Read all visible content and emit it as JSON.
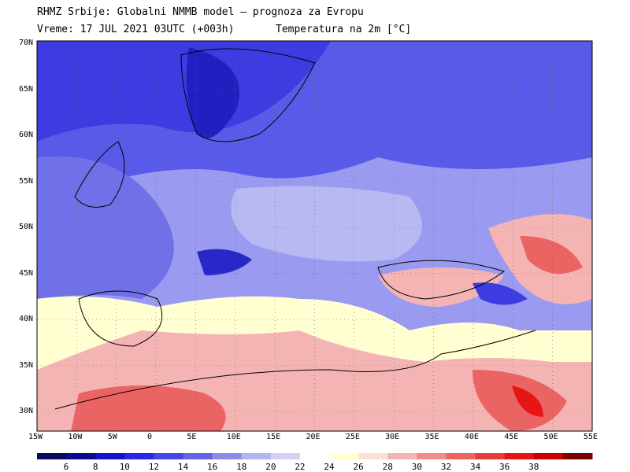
{
  "header": {
    "line1": "RHMZ Srbije: Globalni NMMB model — prognoza za Evropu",
    "line2": "Vreme: 17 JUL 2021 03UTC (+003h)",
    "line2_right": "Temperatura na 2m [°C]"
  },
  "map": {
    "lat_labels": [
      "70N",
      "65N",
      "60N",
      "55N",
      "50N",
      "45N",
      "40N",
      "35N",
      "30N"
    ],
    "lon_labels": [
      "15W",
      "10W",
      "5W",
      "0",
      "5E",
      "10E",
      "15E",
      "20E",
      "25E",
      "30E",
      "35E",
      "40E",
      "45E",
      "50E",
      "55E"
    ]
  },
  "colorbar": {
    "labels": [
      "6",
      "8",
      "10",
      "12",
      "14",
      "16",
      "18",
      "20",
      "22",
      "24",
      "26",
      "28",
      "30",
      "32",
      "34",
      "36",
      "38"
    ],
    "colors": [
      "#0a0a5a",
      "#0b0b8c",
      "#1414c8",
      "#2828e6",
      "#4646e6",
      "#6464e6",
      "#8c8ceb",
      "#b4b4f0",
      "#d2d2f5",
      "#ffffff",
      "#ffffd2",
      "#fae1d2",
      "#f5b4b4",
      "#f08c8c",
      "#eb6464",
      "#e63c3c",
      "#e61414",
      "#c80000",
      "#780000"
    ]
  }
}
